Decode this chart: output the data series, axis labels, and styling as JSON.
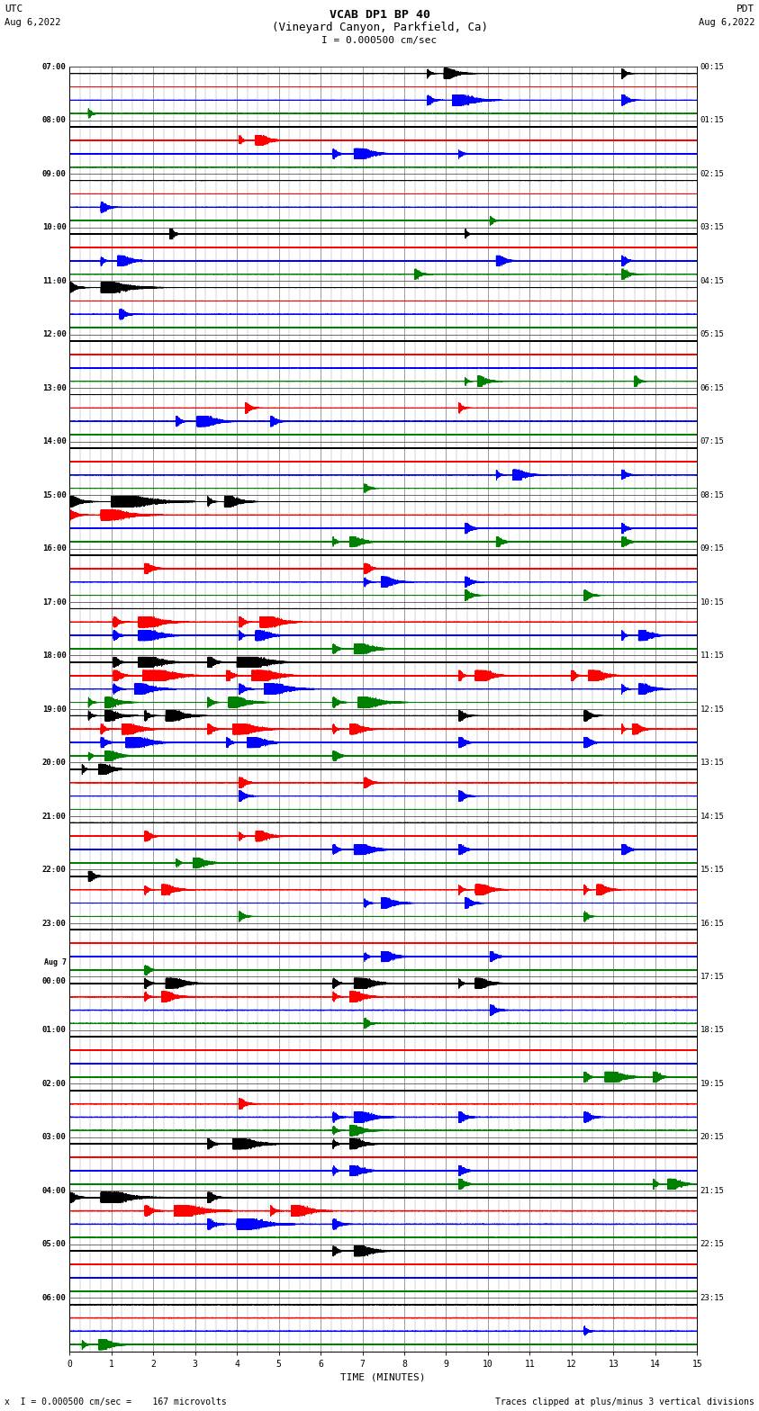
{
  "title_line1": "VCAB DP1 BP 40",
  "title_line2": "(Vineyard Canyon, Parkfield, Ca)",
  "scale_text": "I = 0.000500 cm/sec",
  "left_label": "UTC",
  "right_label": "PDT",
  "left_date": "Aug 6,2022",
  "right_date": "Aug 6,2022",
  "xlabel": "TIME (MINUTES)",
  "bottom_left": "x  I = 0.000500 cm/sec =    167 microvolts",
  "bottom_right": "Traces clipped at plus/minus 3 vertical divisions",
  "num_hours": 24,
  "traces_per_hour": 4,
  "display_minutes": 15,
  "sample_rate": 100,
  "colors": [
    "black",
    "red",
    "blue",
    "green"
  ],
  "fig_width": 8.5,
  "fig_height": 16.13,
  "bg_color": "#ffffff",
  "major_grid_color": "#888888",
  "minor_grid_color": "#aaaacc",
  "clip_divisions": 3,
  "left_utc_labels": [
    "07:00",
    "08:00",
    "09:00",
    "10:00",
    "11:00",
    "12:00",
    "13:00",
    "14:00",
    "15:00",
    "16:00",
    "17:00",
    "18:00",
    "19:00",
    "20:00",
    "21:00",
    "22:00",
    "23:00",
    "Aug 7\n00:00",
    "01:00",
    "02:00",
    "03:00",
    "04:00",
    "05:00",
    "06:00"
  ],
  "right_pdt_labels": [
    "00:15",
    "01:15",
    "02:15",
    "03:15",
    "04:15",
    "05:15",
    "06:15",
    "07:15",
    "08:15",
    "09:15",
    "10:15",
    "11:15",
    "12:15",
    "13:15",
    "14:15",
    "15:15",
    "16:15",
    "17:15",
    "18:15",
    "19:15",
    "20:15",
    "21:15",
    "22:15",
    "23:15"
  ],
  "x_major_ticks": [
    0,
    1,
    2,
    3,
    4,
    5,
    6,
    7,
    8,
    9,
    10,
    11,
    12,
    13,
    14,
    15
  ],
  "x_minor_ticks": [
    0.25,
    0.5,
    0.75,
    1.25,
    1.5,
    1.75,
    2.25,
    2.5,
    2.75,
    3.25,
    3.5,
    3.75,
    4.25,
    4.5,
    4.75,
    5.25,
    5.5,
    5.75,
    6.25,
    6.5,
    6.75,
    7.25,
    7.5,
    7.75,
    8.25,
    8.5,
    8.75,
    9.25,
    9.5,
    9.75,
    10.25,
    10.5,
    10.75,
    11.25,
    11.5,
    11.75,
    12.25,
    12.5,
    12.75,
    13.25,
    13.5,
    13.75,
    14.25,
    14.5,
    14.75
  ]
}
